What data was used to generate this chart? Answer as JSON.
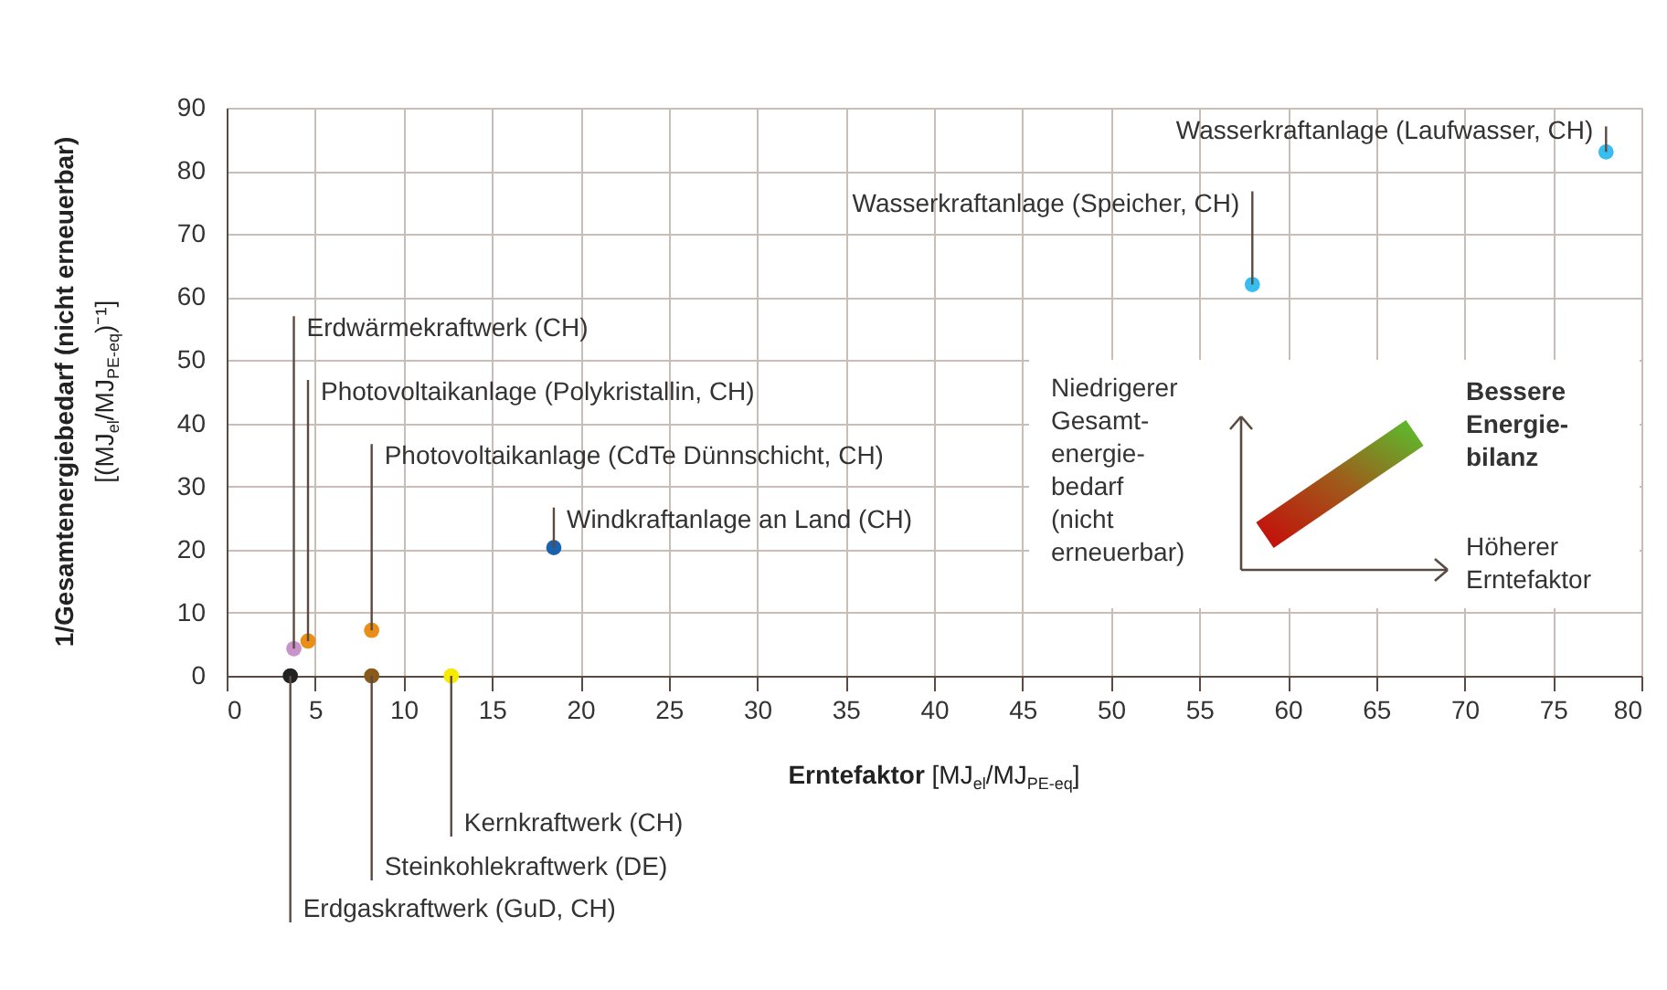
{
  "chart_data": {
    "type": "scatter",
    "xlabel": "Erntefaktor [MJ$_{el}$/MJ$_{PE-eq}$]",
    "ylabel": "1/Gesamtenergiebedarf (nicht erneuerbar) [(MJ$_{el}$/MJ$_{PE-eq}$)⁻¹]",
    "xlim": [
      0,
      80
    ],
    "xticks": [
      0,
      5,
      10,
      15,
      20,
      25,
      30,
      35,
      40,
      45,
      50,
      55,
      60,
      65,
      70,
      75,
      80
    ],
    "ylim": [
      0,
      90
    ],
    "yticks": [
      0,
      10,
      20,
      30,
      40,
      50,
      60,
      70,
      80,
      90
    ],
    "grid": true,
    "marker": "circle",
    "series": [
      {
        "type": "scatter",
        "x": [
          3.6,
          3.8,
          4.6,
          8.2,
          8.2,
          12.7,
          18.5,
          58,
          78
        ],
        "values": [
          0,
          4.3,
          5.5,
          7.2,
          0,
          0,
          20.3,
          62,
          83
        ],
        "colors": [
          "#222222",
          "#c893c8",
          "#ea8e17",
          "#ea8e17",
          "#8a5a1a",
          "#f5ea00",
          "#1a62ad",
          "#38bdf0",
          "#38bdf0"
        ]
      }
    ],
    "annotations": [
      {
        "text": "Erdgaskraftwerk (GuD, CH)",
        "x": 3.6,
        "y": 0
      },
      {
        "text": "Erdwärmekraftwerk (CH)",
        "x": 3.8,
        "y": 4.3
      },
      {
        "text": "Photovoltaikanlage (Polykristallin, CH)",
        "x": 4.6,
        "y": 5.5
      },
      {
        "text": "Photovoltaikanlage (CdTe Dünnschicht, CH)",
        "x": 8.2,
        "y": 7.2
      },
      {
        "text": "Steinkohlekraftwerk (DE)",
        "x": 8.2,
        "y": 0
      },
      {
        "text": "Kernkraftwerk (CH)",
        "x": 12.7,
        "y": 0
      },
      {
        "text": "Windkraftanlage an Land (CH)",
        "x": 18.5,
        "y": 20.3
      },
      {
        "text": "Wasserkraftanlage (Speicher, CH)",
        "x": 58,
        "y": 62
      },
      {
        "text": "Wasserkraftanlage (Laufwasser, CH)",
        "x": 78,
        "y": 83
      },
      "Niedrigerer\nGesamt-\nenergie-\nbedarf\n(nicht\nerneuerbar)",
      "Bessere\nEnergie-\nbilanz",
      "Höherer\nErntefaktor"
    ]
  }
}
